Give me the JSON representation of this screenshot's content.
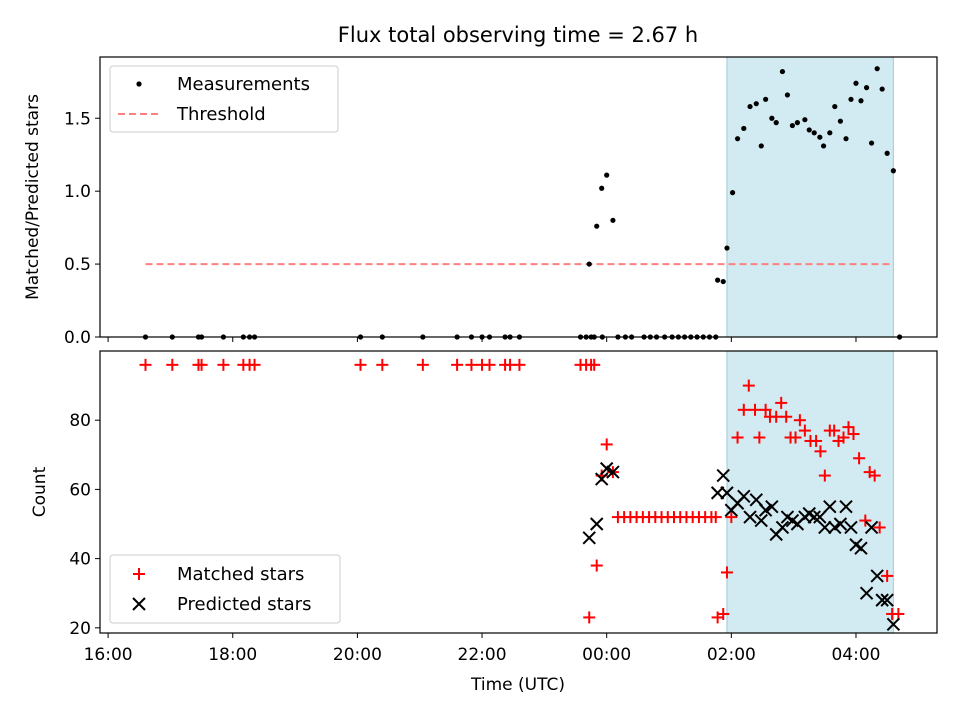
{
  "chart_data": [
    {
      "type": "scatter",
      "panel": "top",
      "title": "Flux total observing time = 2.67 h",
      "ylabel": "Matched/Predicted stars",
      "ylim": [
        0.0,
        1.92
      ],
      "xlim_hours": [
        15.87,
        29.3
      ],
      "yticks": [
        "0.0",
        "0.5",
        "1.0",
        "1.5"
      ],
      "ytick_values": [
        0.0,
        0.5,
        1.0,
        1.5
      ],
      "shaded_region_hours": [
        25.93,
        28.6
      ],
      "legend": {
        "placement": "top-left",
        "entries": [
          "Measurements",
          "Threshold"
        ]
      },
      "threshold": {
        "name": "Threshold",
        "y": 0.5,
        "x_range_hours": [
          16.6,
          28.6
        ],
        "color": "#ff8080"
      },
      "series": [
        {
          "name": "Measurements",
          "color": "#000000",
          "points": [
            [
              16.6,
              0
            ],
            [
              17.03,
              0
            ],
            [
              17.45,
              0
            ],
            [
              17.5,
              0
            ],
            [
              17.85,
              0
            ],
            [
              18.17,
              0
            ],
            [
              18.27,
              0
            ],
            [
              18.35,
              0
            ],
            [
              20.05,
              0
            ],
            [
              20.4,
              0
            ],
            [
              21.05,
              0
            ],
            [
              21.6,
              0
            ],
            [
              21.83,
              0
            ],
            [
              22.0,
              0
            ],
            [
              22.12,
              0
            ],
            [
              22.37,
              0
            ],
            [
              22.45,
              0
            ],
            [
              22.6,
              0
            ],
            [
              23.58,
              0
            ],
            [
              23.67,
              0
            ],
            [
              23.75,
              0
            ],
            [
              23.8,
              0
            ],
            [
              23.93,
              0
            ],
            [
              24.18,
              0
            ],
            [
              24.3,
              0
            ],
            [
              24.4,
              0
            ],
            [
              24.6,
              0
            ],
            [
              24.7,
              0
            ],
            [
              24.8,
              0
            ],
            [
              24.93,
              0
            ],
            [
              25.05,
              0
            ],
            [
              25.15,
              0
            ],
            [
              25.25,
              0
            ],
            [
              25.35,
              0
            ],
            [
              25.45,
              0
            ],
            [
              25.55,
              0
            ],
            [
              25.65,
              0
            ],
            [
              25.75,
              0
            ],
            [
              28.7,
              0
            ],
            [
              23.72,
              0.5
            ],
            [
              23.84,
              0.76
            ],
            [
              23.92,
              1.02
            ],
            [
              24.0,
              1.11
            ],
            [
              24.1,
              0.8
            ],
            [
              25.78,
              0.39
            ],
            [
              25.87,
              0.38
            ],
            [
              25.93,
              0.61
            ],
            [
              26.02,
              0.99
            ],
            [
              26.1,
              1.36
            ],
            [
              26.2,
              1.43
            ],
            [
              26.3,
              1.58
            ],
            [
              26.4,
              1.6
            ],
            [
              26.48,
              1.31
            ],
            [
              26.55,
              1.63
            ],
            [
              26.65,
              1.5
            ],
            [
              26.72,
              1.47
            ],
            [
              26.82,
              1.82
            ],
            [
              26.9,
              1.66
            ],
            [
              26.98,
              1.45
            ],
            [
              27.06,
              1.47
            ],
            [
              27.18,
              1.49
            ],
            [
              27.25,
              1.42
            ],
            [
              27.33,
              1.4
            ],
            [
              27.42,
              1.37
            ],
            [
              27.48,
              1.31
            ],
            [
              27.58,
              1.4
            ],
            [
              27.66,
              1.58
            ],
            [
              27.75,
              1.48
            ],
            [
              27.84,
              1.36
            ],
            [
              27.92,
              1.63
            ],
            [
              28.0,
              1.74
            ],
            [
              28.08,
              1.62
            ],
            [
              28.17,
              1.71
            ],
            [
              28.25,
              1.33
            ],
            [
              28.34,
              1.84
            ],
            [
              28.42,
              1.7
            ],
            [
              28.5,
              1.26
            ],
            [
              28.6,
              1.14
            ]
          ]
        }
      ]
    },
    {
      "type": "scatter",
      "panel": "bottom",
      "xlabel": "Time (UTC)",
      "ylabel": "Count",
      "ylim": [
        18.5,
        100
      ],
      "xlim_hours": [
        15.87,
        29.3
      ],
      "xticks": [
        "16:00",
        "18:00",
        "20:00",
        "22:00",
        "00:00",
        "02:00",
        "04:00"
      ],
      "xtick_hours": [
        16,
        18,
        20,
        22,
        24,
        26,
        28
      ],
      "yticks": [
        "20",
        "40",
        "60",
        "80"
      ],
      "ytick_values": [
        20,
        40,
        60,
        80
      ],
      "shaded_region_hours": [
        25.93,
        28.6
      ],
      "legend": {
        "placement": "bottom-left",
        "entries": [
          "Matched stars",
          "Predicted stars"
        ]
      },
      "series": [
        {
          "name": "Matched stars",
          "marker": "plus",
          "color": "#ff0000",
          "points": [
            [
              16.6,
              96
            ],
            [
              17.03,
              96
            ],
            [
              17.45,
              96
            ],
            [
              17.5,
              96
            ],
            [
              17.85,
              96
            ],
            [
              18.17,
              96
            ],
            [
              18.27,
              96
            ],
            [
              18.35,
              96
            ],
            [
              20.05,
              96
            ],
            [
              20.4,
              96
            ],
            [
              21.05,
              96
            ],
            [
              21.6,
              96
            ],
            [
              21.83,
              96
            ],
            [
              22.0,
              96
            ],
            [
              22.12,
              96
            ],
            [
              22.37,
              96
            ],
            [
              22.45,
              96
            ],
            [
              22.6,
              96
            ],
            [
              23.58,
              96
            ],
            [
              23.67,
              96
            ],
            [
              23.75,
              96
            ],
            [
              23.8,
              96
            ],
            [
              23.72,
              23
            ],
            [
              23.84,
              38
            ],
            [
              23.92,
              64
            ],
            [
              24.0,
              73
            ],
            [
              24.1,
              65
            ],
            [
              24.18,
              52
            ],
            [
              24.28,
              52
            ],
            [
              24.38,
              52
            ],
            [
              24.48,
              52
            ],
            [
              24.58,
              52
            ],
            [
              24.68,
              52
            ],
            [
              24.78,
              52
            ],
            [
              24.88,
              52
            ],
            [
              24.98,
              52
            ],
            [
              25.08,
              52
            ],
            [
              25.18,
              52
            ],
            [
              25.28,
              52
            ],
            [
              25.38,
              52
            ],
            [
              25.48,
              52
            ],
            [
              25.58,
              52
            ],
            [
              25.68,
              52
            ],
            [
              25.75,
              52
            ],
            [
              25.78,
              23
            ],
            [
              25.87,
              24
            ],
            [
              25.93,
              36
            ],
            [
              26.0,
              52
            ],
            [
              26.1,
              75
            ],
            [
              26.2,
              83
            ],
            [
              26.28,
              90
            ],
            [
              26.38,
              83
            ],
            [
              26.45,
              75
            ],
            [
              26.55,
              83
            ],
            [
              26.62,
              81
            ],
            [
              26.72,
              81
            ],
            [
              26.8,
              85
            ],
            [
              26.88,
              81
            ],
            [
              26.95,
              75
            ],
            [
              27.03,
              75
            ],
            [
              27.1,
              80
            ],
            [
              27.18,
              77
            ],
            [
              27.27,
              74
            ],
            [
              27.36,
              74
            ],
            [
              27.43,
              71
            ],
            [
              27.5,
              64
            ],
            [
              27.58,
              77
            ],
            [
              27.65,
              77
            ],
            [
              27.72,
              74
            ],
            [
              27.8,
              75
            ],
            [
              27.88,
              78
            ],
            [
              27.96,
              76
            ],
            [
              28.05,
              69
            ],
            [
              28.15,
              51
            ],
            [
              28.22,
              65
            ],
            [
              28.3,
              64
            ],
            [
              28.38,
              49
            ],
            [
              28.5,
              35
            ],
            [
              28.58,
              24
            ],
            [
              28.68,
              24
            ]
          ]
        },
        {
          "name": "Predicted stars",
          "marker": "x",
          "color": "#000000",
          "points": [
            [
              23.72,
              46
            ],
            [
              23.84,
              50
            ],
            [
              23.92,
              63
            ],
            [
              24.0,
              66
            ],
            [
              24.1,
              65
            ],
            [
              25.78,
              59
            ],
            [
              25.87,
              64
            ],
            [
              25.93,
              59
            ],
            [
              26.0,
              54
            ],
            [
              26.1,
              56
            ],
            [
              26.2,
              58
            ],
            [
              26.3,
              52
            ],
            [
              26.4,
              57
            ],
            [
              26.48,
              51
            ],
            [
              26.55,
              54
            ],
            [
              26.65,
              55
            ],
            [
              26.72,
              47
            ],
            [
              26.82,
              49
            ],
            [
              26.9,
              52
            ],
            [
              26.98,
              51
            ],
            [
              27.06,
              50
            ],
            [
              27.18,
              52
            ],
            [
              27.25,
              53
            ],
            [
              27.33,
              52
            ],
            [
              27.42,
              52
            ],
            [
              27.5,
              49
            ],
            [
              27.58,
              55
            ],
            [
              27.66,
              49
            ],
            [
              27.75,
              50
            ],
            [
              27.84,
              55
            ],
            [
              27.92,
              49
            ],
            [
              28.0,
              44
            ],
            [
              28.08,
              43
            ],
            [
              28.17,
              30
            ],
            [
              28.25,
              49
            ],
            [
              28.34,
              35
            ],
            [
              28.42,
              28
            ],
            [
              28.5,
              28
            ],
            [
              28.6,
              21
            ]
          ]
        }
      ]
    }
  ]
}
